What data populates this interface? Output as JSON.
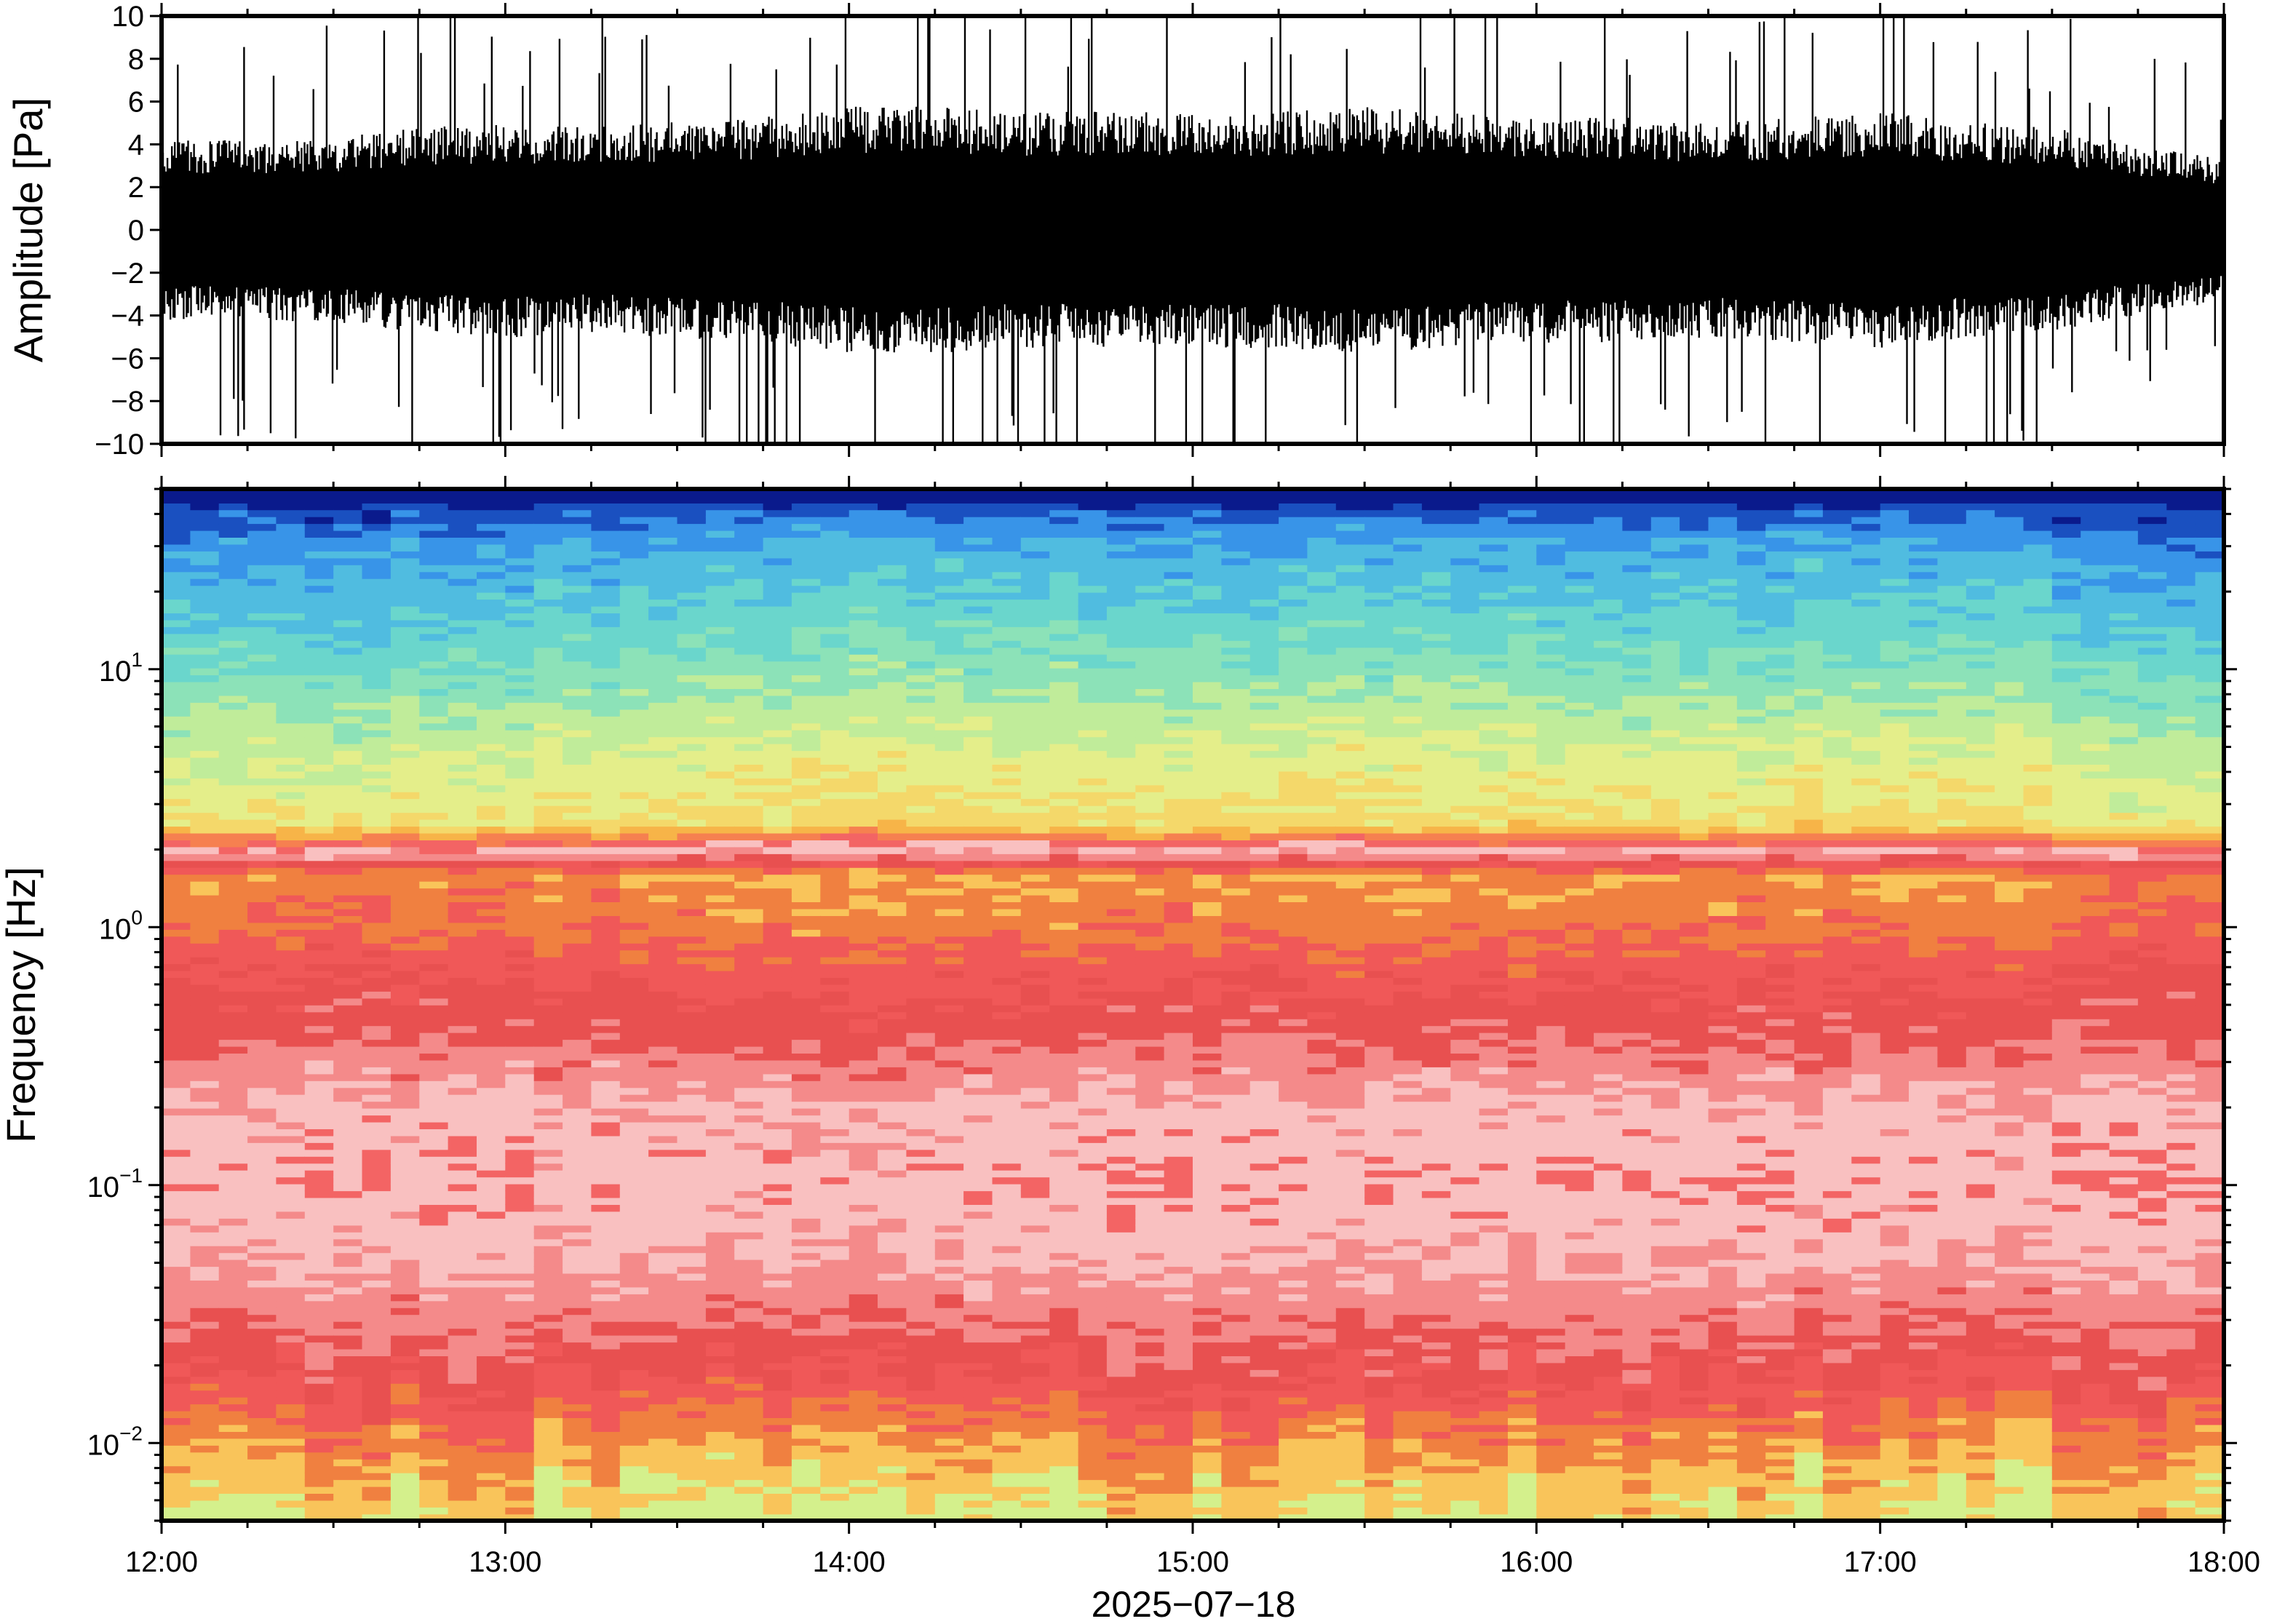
{
  "chart_data": [
    {
      "type": "line",
      "panel": "waveform",
      "ylabel": "Amplitude [Pa]",
      "ylim": [
        -10,
        10
      ],
      "yticks": [
        -10,
        -8,
        -6,
        -4,
        -2,
        0,
        2,
        4,
        6,
        8,
        10
      ],
      "ytick_labels": [
        "−10",
        "−8",
        "−6",
        "−4",
        "−2",
        "0",
        "2",
        "4",
        "6",
        "8",
        "10"
      ],
      "xlim": [
        "2025-07-18 12:00",
        "2025-07-18 18:00"
      ],
      "envelope_pa": {
        "x": [
          "12:00",
          "12:15",
          "12:30",
          "12:45",
          "13:00",
          "13:15",
          "13:30",
          "13:45",
          "14:00",
          "14:15",
          "14:30",
          "14:45",
          "15:00",
          "15:15",
          "15:30",
          "15:45",
          "16:00",
          "16:15",
          "16:30",
          "16:45",
          "17:00",
          "17:15",
          "17:30",
          "17:45",
          "18:00"
        ],
        "typical_peak": [
          3.5,
          3.5,
          3.6,
          4.0,
          4.2,
          4.0,
          4.2,
          4.4,
          4.8,
          4.8,
          4.6,
          4.6,
          4.6,
          4.6,
          4.8,
          4.6,
          4.4,
          4.4,
          4.2,
          4.4,
          4.6,
          4.2,
          4.0,
          3.3,
          2.8
        ],
        "max_spike": 10
      },
      "line_color": "#000000"
    },
    {
      "type": "heatmap",
      "panel": "spectrogram",
      "ylabel": "Frequency [Hz]",
      "yscale": "log",
      "ylim_hz": [
        0.005,
        50
      ],
      "yticks_hz": [
        0.01,
        0.1,
        1,
        10
      ],
      "ytick_labels": [
        {
          "base": "10",
          "exp": "−2"
        },
        {
          "base": "10",
          "exp": "−1"
        },
        {
          "base": "10",
          "exp": "0"
        },
        {
          "base": "10",
          "exp": "1"
        }
      ],
      "xlim": [
        "2025-07-18 12:00",
        "2025-07-18 18:00"
      ],
      "xticks": [
        "12:00",
        "13:00",
        "14:00",
        "15:00",
        "16:00",
        "17:00",
        "18:00"
      ],
      "xlabel": "2025−07−18",
      "frequency_bands": [
        {
          "f_hz": 45,
          "color": "#0a1a8c"
        },
        {
          "f_hz": 30,
          "color": "#3a8fe8"
        },
        {
          "f_hz": 12,
          "color": "#6cdcc4"
        },
        {
          "f_hz": 3,
          "color": "#dfec86"
        },
        {
          "f_hz": 1,
          "color": "#f9c45a"
        },
        {
          "f_hz": 0.5,
          "color": "#f36060"
        },
        {
          "f_hz": 0.12,
          "color": "#f7b8b8"
        },
        {
          "f_hz": 0.03,
          "color": "#ef5a5a"
        },
        {
          "f_hz": 0.012,
          "color": "#f9b04a"
        },
        {
          "f_hz": 0.006,
          "color": "#d4f08c"
        }
      ]
    }
  ]
}
